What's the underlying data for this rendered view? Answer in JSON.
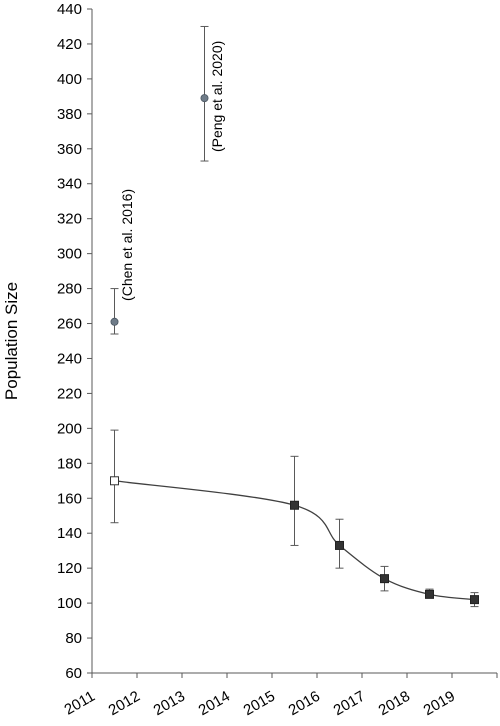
{
  "chart_data": {
    "type": "scatter",
    "title": "",
    "xlabel": "",
    "ylabel": "Population Size",
    "ylim": [
      60,
      440
    ],
    "yticks": [
      60,
      80,
      100,
      120,
      140,
      160,
      180,
      200,
      220,
      240,
      260,
      280,
      300,
      320,
      340,
      360,
      380,
      400,
      420,
      440
    ],
    "xlim": [
      2011,
      2020
    ],
    "xtick_labels": [
      "2011",
      "2012",
      "2013",
      "2014",
      "2015",
      "2016",
      "2017",
      "2018",
      "2019"
    ],
    "grid": false,
    "legend": "none",
    "series": [
      {
        "marker": "circle",
        "color": "#6e7b88",
        "points": [
          {
            "x": 2011.5,
            "y": 261,
            "err_low": 254,
            "err_high": 280
          },
          {
            "x": 2013.5,
            "y": 389,
            "err_low": 353,
            "err_high": 430
          }
        ]
      },
      {
        "marker": "open-square",
        "color": "#ffffff",
        "points": [
          {
            "x": 2011.5,
            "y": 170,
            "err_low": 146,
            "err_high": 199
          }
        ]
      },
      {
        "marker": "filled-square",
        "color": "#333333",
        "line": "smooth",
        "points": [
          {
            "x": 2015.5,
            "y": 156,
            "err_low": 133,
            "err_high": 184
          },
          {
            "x": 2016.5,
            "y": 133,
            "err_low": 120,
            "err_high": 148
          },
          {
            "x": 2017.5,
            "y": 114,
            "err_low": 107,
            "err_high": 121
          },
          {
            "x": 2018.5,
            "y": 105,
            "err_low": 103,
            "err_high": 108
          },
          {
            "x": 2019.5,
            "y": 102,
            "err_low": 98,
            "err_high": 106
          }
        ]
      }
    ],
    "annotations": [
      {
        "text": "(Chen et al. 2016)",
        "x": 2011.8,
        "y": 305
      },
      {
        "text": "(Peng et al. 2020)",
        "x": 2013.8,
        "y": 390
      }
    ]
  }
}
